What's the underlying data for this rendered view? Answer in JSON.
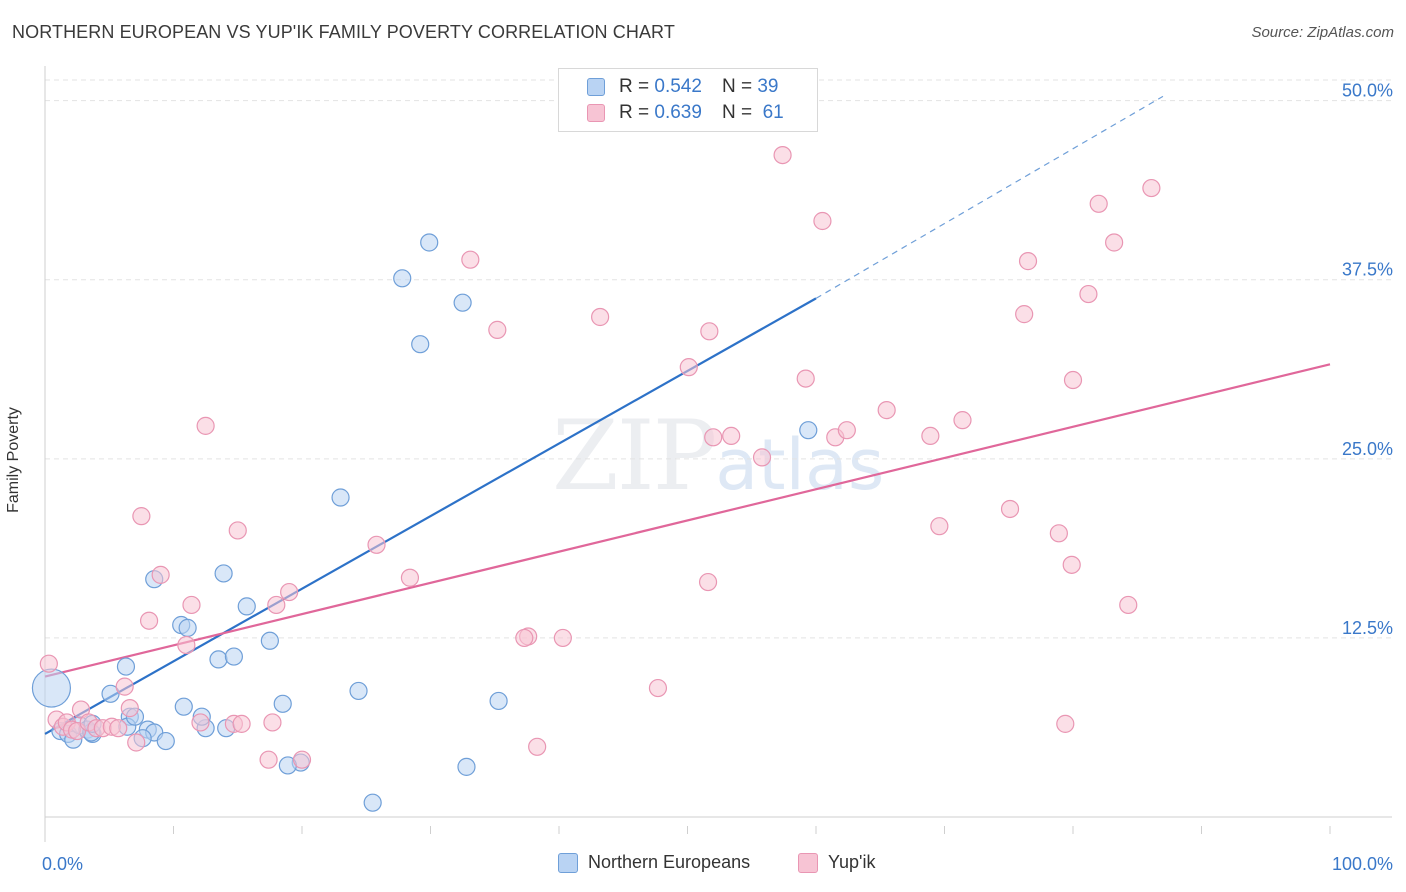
{
  "header": {
    "title": "NORTHERN EUROPEAN VS YUP'IK FAMILY POVERTY CORRELATION CHART",
    "source": "Source: ZipAtlas.com"
  },
  "watermark": {
    "zip": "ZIP",
    "atlas": "atlas"
  },
  "legend_top": {
    "rows": [
      {
        "r_label": "R =",
        "r_value": "0.542",
        "n_label": "N =",
        "n_value": "39"
      },
      {
        "r_label": "R =",
        "r_value": "0.639",
        "n_label": "N =",
        "n_value": "61"
      }
    ]
  },
  "colors": {
    "blue_fill": "#b9d3f3",
    "blue_stroke": "#6f9fd8",
    "blue_line": "#2d72c8",
    "pink_fill": "#f7c4d4",
    "pink_stroke": "#e996b3",
    "pink_line": "#e0679a",
    "tick_label": "#3a78c9",
    "grid": "#e3e3e3"
  },
  "chart_data": {
    "type": "scatter",
    "title": "NORTHERN EUROPEAN VS YUP'IK FAMILY POVERTY CORRELATION CHART",
    "xlabel": "",
    "ylabel": "Family Poverty",
    "xlim": [
      0,
      100
    ],
    "ylim": [
      0,
      52
    ],
    "x_tick_labels": [
      "0.0%",
      "100.0%"
    ],
    "y_ticks": [
      12.5,
      25.0,
      37.5,
      50.0
    ],
    "y_tick_labels": [
      "12.5%",
      "25.0%",
      "37.5%",
      "50.0%"
    ],
    "grid": true,
    "legend": "bottom-center",
    "series": [
      {
        "name": "Northern Europeans",
        "color": "#6f9fd8",
        "r": 0.542,
        "n": 39,
        "trend": {
          "x0": 0,
          "y0": 5.8,
          "x1": 60,
          "y1": 36.2,
          "dashed_to_x": 87,
          "dashed_to_y": 50.3
        },
        "points": [
          [
            0.5,
            9.0,
            "large"
          ],
          [
            1.2,
            6.0
          ],
          [
            1.8,
            5.8
          ],
          [
            2.2,
            5.4
          ],
          [
            2.7,
            6.4
          ],
          [
            3.3,
            6.1
          ],
          [
            3.7,
            5.8
          ],
          [
            3.6,
            5.9
          ],
          [
            3.7,
            6.5
          ],
          [
            5.1,
            8.6
          ],
          [
            6.3,
            10.5
          ],
          [
            6.6,
            7.0
          ],
          [
            6.4,
            6.3
          ],
          [
            7.0,
            7.0
          ],
          [
            8.0,
            6.1
          ],
          [
            8.5,
            5.9
          ],
          [
            7.6,
            5.5
          ],
          [
            9.4,
            5.3
          ],
          [
            10.6,
            13.4
          ],
          [
            8.5,
            16.6
          ],
          [
            10.8,
            7.7
          ],
          [
            11.1,
            13.2
          ],
          [
            12.5,
            6.2
          ],
          [
            12.2,
            7.0
          ],
          [
            13.5,
            11.0
          ],
          [
            14.1,
            6.2
          ],
          [
            14.7,
            11.2
          ],
          [
            13.9,
            17.0
          ],
          [
            15.7,
            14.7
          ],
          [
            17.5,
            12.3
          ],
          [
            18.5,
            7.9
          ],
          [
            19.9,
            3.8
          ],
          [
            18.9,
            3.6
          ],
          [
            24.4,
            8.8
          ],
          [
            23.0,
            22.3
          ],
          [
            25.5,
            1.0
          ],
          [
            27.8,
            37.6
          ],
          [
            29.2,
            33.0
          ],
          [
            29.9,
            40.1
          ],
          [
            32.5,
            35.9
          ],
          [
            32.8,
            3.5
          ],
          [
            35.3,
            8.1
          ],
          [
            59.4,
            27.0
          ]
        ]
      },
      {
        "name": "Yup'ik",
        "color": "#e996b3",
        "r": 0.639,
        "n": 61,
        "trend": {
          "x0": 0,
          "y0": 9.8,
          "x1": 100,
          "y1": 31.6
        },
        "points": [
          [
            0.3,
            10.7
          ],
          [
            0.9,
            6.8
          ],
          [
            1.4,
            6.3
          ],
          [
            1.7,
            6.6
          ],
          [
            2.1,
            6.1
          ],
          [
            2.5,
            6.0
          ],
          [
            2.8,
            7.5
          ],
          [
            3.4,
            6.6
          ],
          [
            4.0,
            6.2
          ],
          [
            4.5,
            6.2
          ],
          [
            5.2,
            6.3
          ],
          [
            5.7,
            6.2
          ],
          [
            6.6,
            7.6
          ],
          [
            7.1,
            5.2
          ],
          [
            6.2,
            9.1
          ],
          [
            7.5,
            21.0
          ],
          [
            8.1,
            13.7
          ],
          [
            9.0,
            16.9
          ],
          [
            11.0,
            12.0
          ],
          [
            11.4,
            14.8
          ],
          [
            12.1,
            6.6
          ],
          [
            12.5,
            27.3
          ],
          [
            14.7,
            6.5
          ],
          [
            15.3,
            6.5
          ],
          [
            15.0,
            20.0
          ],
          [
            17.4,
            4.0
          ],
          [
            17.7,
            6.6
          ],
          [
            19.0,
            15.7
          ],
          [
            18.0,
            14.8
          ],
          [
            20.0,
            4.0
          ],
          [
            25.8,
            19.0
          ],
          [
            28.4,
            16.7
          ],
          [
            33.1,
            38.9
          ],
          [
            35.2,
            34.0
          ],
          [
            37.6,
            12.6
          ],
          [
            37.3,
            12.5
          ],
          [
            38.3,
            4.9
          ],
          [
            40.3,
            12.5
          ],
          [
            43.2,
            34.9
          ],
          [
            47.7,
            9.0
          ],
          [
            50.1,
            31.4
          ],
          [
            51.6,
            16.4
          ],
          [
            51.7,
            33.9
          ],
          [
            52.0,
            26.5
          ],
          [
            53.4,
            26.6
          ],
          [
            55.8,
            25.1
          ],
          [
            57.4,
            46.2
          ],
          [
            59.2,
            30.6
          ],
          [
            60.5,
            41.6
          ],
          [
            61.5,
            26.5
          ],
          [
            62.4,
            27.0
          ],
          [
            65.5,
            28.4
          ],
          [
            68.9,
            26.6
          ],
          [
            69.6,
            20.3
          ],
          [
            71.4,
            27.7
          ],
          [
            75.1,
            21.5
          ],
          [
            76.2,
            35.1
          ],
          [
            76.5,
            38.8
          ],
          [
            78.9,
            19.8
          ],
          [
            79.4,
            6.5
          ],
          [
            79.9,
            17.6
          ],
          [
            80.0,
            30.5
          ],
          [
            81.2,
            36.5
          ],
          [
            82.0,
            42.8
          ],
          [
            83.2,
            40.1
          ],
          [
            84.3,
            14.8
          ],
          [
            86.1,
            43.9
          ]
        ]
      }
    ]
  }
}
